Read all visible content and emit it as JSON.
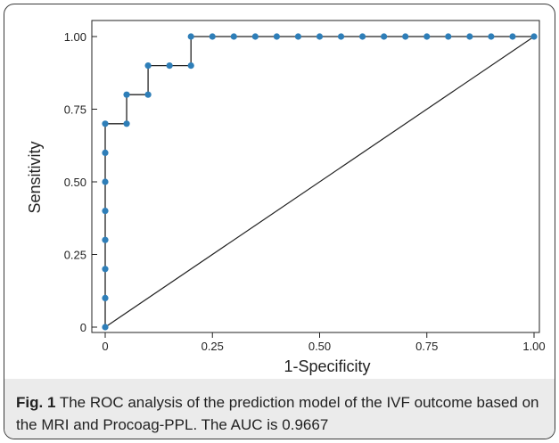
{
  "figure": {
    "caption_label": "Fig. 1",
    "caption_text": "The ROC analysis of the prediction model of the IVF outcome based on the MRI and Procoag-PPL. The AUC is 0.9667"
  },
  "chart_data": {
    "type": "line",
    "title": "",
    "xlabel": "1-Specificity",
    "ylabel": "Sensitivity",
    "xlim": [
      0,
      1
    ],
    "ylim": [
      0,
      1
    ],
    "x_ticks": [
      0,
      0.25,
      0.5,
      0.75,
      1.0
    ],
    "x_tick_labels": [
      "0",
      "0.25",
      "0.50",
      "0.75",
      "1.00"
    ],
    "y_ticks": [
      0,
      0.25,
      0.5,
      0.75,
      1.0
    ],
    "y_tick_labels": [
      "0",
      "0.25",
      "0.50",
      "0.75",
      "1.00"
    ],
    "grid": false,
    "colors": {
      "points": "#2e7eb8",
      "line": "#222222"
    },
    "series": [
      {
        "points": [
          [
            0,
            0
          ],
          [
            0,
            0.1
          ],
          [
            0,
            0.2
          ],
          [
            0,
            0.3
          ],
          [
            0,
            0.4
          ],
          [
            0,
            0.5
          ],
          [
            0,
            0.6
          ],
          [
            0,
            0.7
          ],
          [
            0.05,
            0.7
          ],
          [
            0.05,
            0.8
          ],
          [
            0.1,
            0.8
          ],
          [
            0.1,
            0.9
          ],
          [
            0.15,
            0.9
          ],
          [
            0.2,
            0.9
          ],
          [
            0.2,
            1.0
          ],
          [
            0.25,
            1.0
          ],
          [
            0.3,
            1.0
          ],
          [
            0.35,
            1.0
          ],
          [
            0.4,
            1.0
          ],
          [
            0.45,
            1.0
          ],
          [
            0.5,
            1.0
          ],
          [
            0.55,
            1.0
          ],
          [
            0.6,
            1.0
          ],
          [
            0.65,
            1.0
          ],
          [
            0.7,
            1.0
          ],
          [
            0.75,
            1.0
          ],
          [
            0.8,
            1.0
          ],
          [
            0.85,
            1.0
          ],
          [
            0.9,
            1.0
          ],
          [
            0.95,
            1.0
          ],
          [
            1.0,
            1.0
          ]
        ]
      }
    ],
    "reference_line": [
      [
        0,
        0
      ],
      [
        1,
        1
      ]
    ]
  }
}
